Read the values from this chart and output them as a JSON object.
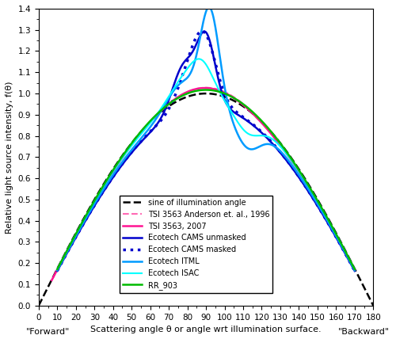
{
  "title": "",
  "xlabel": "Scattering angle θ or angle wrt illumination surface.",
  "ylabel": "Relative light source intensity, f(θ)",
  "xlim": [
    0,
    180
  ],
  "ylim": [
    0.0,
    1.4
  ],
  "xticks": [
    0,
    10,
    20,
    30,
    40,
    50,
    60,
    70,
    80,
    90,
    100,
    110,
    120,
    130,
    140,
    150,
    160,
    170,
    180
  ],
  "yticks": [
    0.0,
    0.1,
    0.2,
    0.3,
    0.4,
    0.5,
    0.6,
    0.7,
    0.8,
    0.9,
    1.0,
    1.1,
    1.2,
    1.3,
    1.4
  ],
  "forward_label": "\"Forward\"",
  "backward_label": "\"Backward\"",
  "legend_entries": [
    "sine of illumination angle",
    "TSI 3563 Anderson et. al., 1996",
    "TSI 3563, 2007",
    "Ecotech CAMS unmasked",
    "Ecotech CAMS masked",
    "Ecotech ITML",
    "Ecotech ISAC",
    "RR_903"
  ],
  "colors": {
    "sine": "#000000",
    "tsi1996": "#ff69b4",
    "tsi2007": "#ff1493",
    "ecotech_cams_unmasked": "#0000cc",
    "ecotech_cams_masked": "#0000cc",
    "ecotech_itml": "#009bff",
    "ecotech_isac": "#00ffff",
    "rr903": "#00bb00"
  },
  "figsize": [
    5.0,
    4.28
  ],
  "dpi": 100
}
